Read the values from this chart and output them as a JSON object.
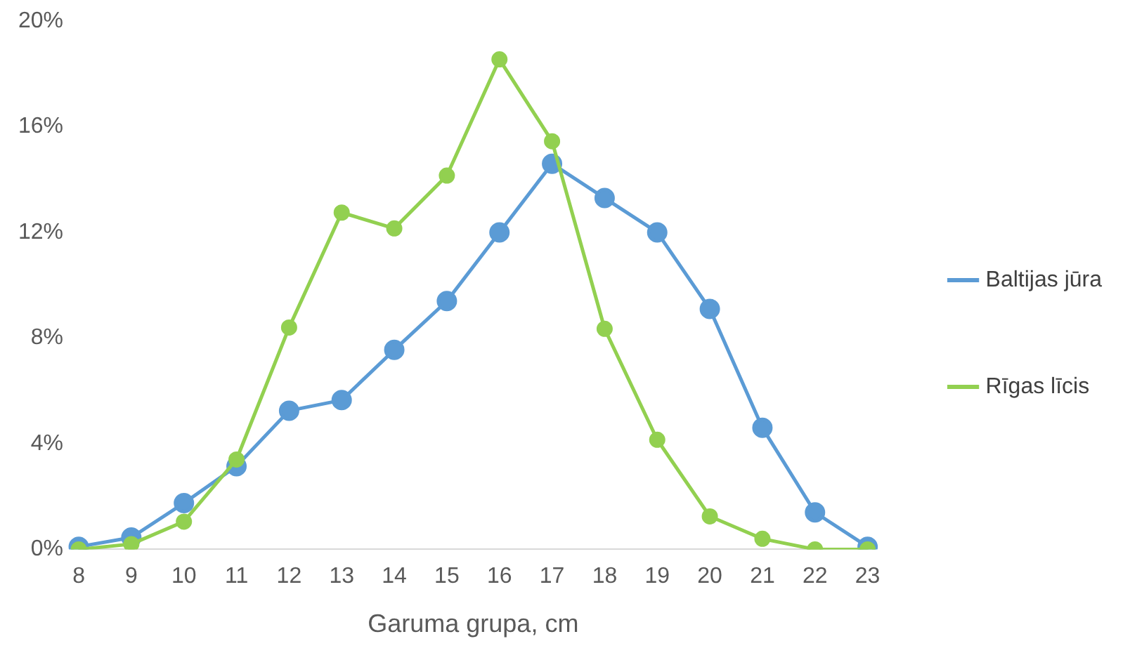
{
  "chart_data": {
    "type": "line",
    "xlabel": "Garuma grupa, cm",
    "categories": [
      "8",
      "9",
      "10",
      "11",
      "12",
      "13",
      "14",
      "15",
      "16",
      "17",
      "18",
      "19",
      "20",
      "21",
      "22",
      "23"
    ],
    "series": [
      {
        "name": "Baltijas jūra",
        "color": "#5b9bd5",
        "values": [
          0.1,
          0.45,
          1.75,
          3.15,
          5.25,
          5.65,
          7.55,
          9.4,
          12.0,
          14.6,
          13.3,
          12.0,
          9.1,
          4.6,
          1.4,
          0.1
        ]
      },
      {
        "name": "Rīgas līcis",
        "color": "#92d050",
        "values": [
          0,
          0.2,
          1.05,
          3.4,
          8.4,
          12.75,
          12.15,
          14.15,
          18.55,
          15.45,
          8.35,
          4.15,
          1.25,
          0.4,
          0,
          0
        ]
      }
    ],
    "ylim": [
      0,
      20
    ],
    "yticks": [
      {
        "value": 0,
        "label": "0%"
      },
      {
        "value": 4,
        "label": "4%"
      },
      {
        "value": 8,
        "label": "8%"
      },
      {
        "value": 12,
        "label": "12%"
      },
      {
        "value": 16,
        "label": "16%"
      },
      {
        "value": 20,
        "label": "20%"
      }
    ],
    "grid": false,
    "legend": "right",
    "marker": "circle",
    "line_style": "solid"
  }
}
